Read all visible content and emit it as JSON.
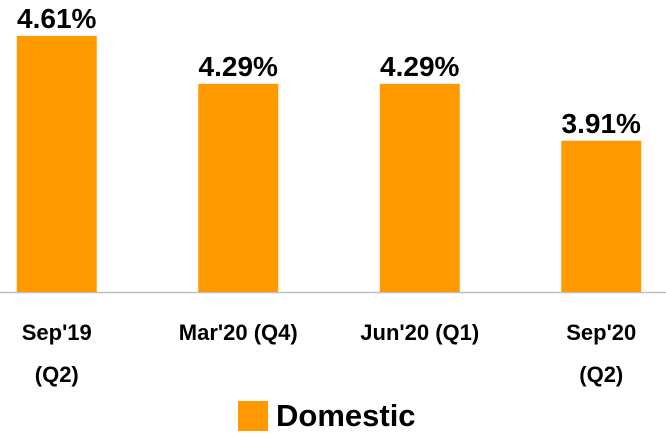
{
  "chart_data": {
    "type": "bar",
    "categories": [
      "Sep'19 (Q2)",
      "Mar'20 (Q4)",
      "Jun'20 (Q1)",
      "Sep'20 (Q2)"
    ],
    "series": [
      {
        "name": "Domestic",
        "color": "#ff9900",
        "values": [
          4.61,
          4.29,
          4.29,
          3.91
        ],
        "value_labels": [
          "4.61%",
          "4.29%",
          "4.29%",
          "3.91%"
        ]
      }
    ],
    "ylim": [
      2.9,
      4.85
    ],
    "legend": "bottom"
  }
}
